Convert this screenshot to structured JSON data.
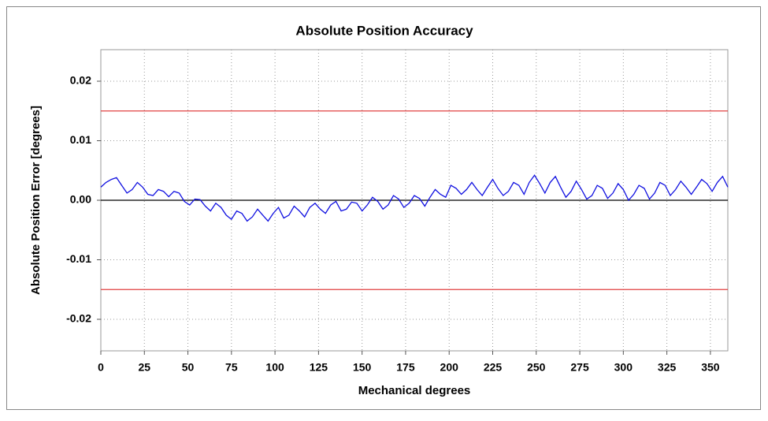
{
  "chart_data": {
    "type": "line",
    "title": "Absolute Position Accuracy",
    "x_label": "Mechanical degrees",
    "y_label": "Absolute Position Error [degrees]",
    "xlim": [
      0,
      360
    ],
    "ylim": [
      -0.0253,
      0.0253
    ],
    "xticks": [
      0,
      25,
      50,
      75,
      100,
      125,
      150,
      175,
      200,
      225,
      250,
      275,
      300,
      325,
      350
    ],
    "yticks": [
      -0.02,
      -0.01,
      {
        "value": 0,
        "label": "0.00"
      },
      0.01,
      0.02
    ],
    "grid": true,
    "reference_lines": [
      {
        "value": 0.015,
        "color": "#e04040"
      },
      {
        "value": -0.015,
        "color": "#e04040"
      },
      {
        "value": 0,
        "color": "#000000"
      }
    ],
    "x": [
      0,
      3,
      6,
      9,
      12,
      15,
      18,
      21,
      24,
      27,
      30,
      33,
      36,
      39,
      42,
      45,
      48,
      51,
      54,
      57,
      60,
      63,
      66,
      69,
      72,
      75,
      78,
      81,
      84,
      87,
      90,
      93,
      96,
      99,
      102,
      105,
      108,
      111,
      114,
      117,
      120,
      123,
      126,
      129,
      132,
      135,
      138,
      141,
      144,
      147,
      150,
      153,
      156,
      159,
      162,
      165,
      168,
      171,
      174,
      177,
      180,
      183,
      186,
      189,
      192,
      195,
      198,
      201,
      204,
      207,
      210,
      213,
      216,
      219,
      222,
      225,
      228,
      231,
      234,
      237,
      240,
      243,
      246,
      249,
      252,
      255,
      258,
      261,
      264,
      267,
      270,
      273,
      276,
      279,
      282,
      285,
      288,
      291,
      294,
      297,
      300,
      303,
      306,
      309,
      312,
      315,
      318,
      321,
      324,
      327,
      330,
      333,
      336,
      339,
      342,
      345,
      348,
      351,
      354,
      357,
      360
    ],
    "series": [
      {
        "color": "#1010e0",
        "values": [
          0.0022,
          0.003,
          0.0035,
          0.0038,
          0.0025,
          0.0012,
          0.0018,
          0.003,
          0.0022,
          0.001,
          0.0008,
          0.0018,
          0.0015,
          0.0006,
          0.0015,
          0.0012,
          -0.0002,
          -0.0008,
          0.0002,
          0.0001,
          -0.001,
          -0.0018,
          -0.0005,
          -0.0012,
          -0.0025,
          -0.0032,
          -0.0018,
          -0.0022,
          -0.0035,
          -0.0028,
          -0.0015,
          -0.0025,
          -0.0035,
          -0.0022,
          -0.0012,
          -0.003,
          -0.0025,
          -0.001,
          -0.0018,
          -0.0028,
          -0.0012,
          -0.0005,
          -0.0015,
          -0.0022,
          -0.0008,
          -0.0002,
          -0.0018,
          -0.0015,
          -0.0003,
          -0.0005,
          -0.0018,
          -0.0008,
          0.0005,
          -0.0002,
          -0.0015,
          -0.0008,
          0.0008,
          0.0002,
          -0.0012,
          -0.0005,
          0.0008,
          0.0003,
          -0.001,
          0.0005,
          0.0018,
          0.001,
          0.0005,
          0.0025,
          0.002,
          0.001,
          0.0018,
          0.003,
          0.0018,
          0.0008,
          0.0022,
          0.0035,
          0.002,
          0.0008,
          0.0015,
          0.003,
          0.0025,
          0.001,
          0.003,
          0.0042,
          0.0028,
          0.0012,
          0.003,
          0.004,
          0.0022,
          0.0005,
          0.0015,
          0.0032,
          0.0018,
          0.0002,
          0.0008,
          0.0025,
          0.002,
          0.0003,
          0.0012,
          0.0028,
          0.0018,
          0.0,
          0.001,
          0.0025,
          0.002,
          0.0002,
          0.0012,
          0.003,
          0.0025,
          0.0008,
          0.0018,
          0.0032,
          0.0022,
          0.001,
          0.0022,
          0.0035,
          0.0028,
          0.0015,
          0.003,
          0.004,
          0.0022
        ]
      }
    ]
  }
}
